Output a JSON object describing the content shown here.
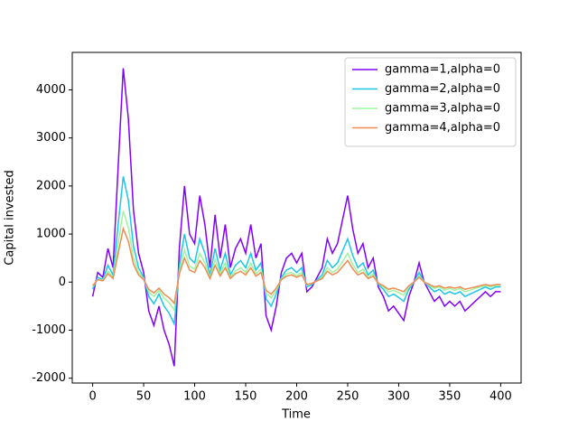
{
  "chart_data": {
    "type": "line",
    "xlabel": "Time",
    "ylabel": "Capital invested",
    "x": [
      0,
      5,
      10,
      15,
      20,
      25,
      30,
      35,
      40,
      45,
      50,
      55,
      60,
      65,
      70,
      75,
      80,
      85,
      90,
      95,
      100,
      105,
      110,
      115,
      120,
      125,
      130,
      135,
      140,
      145,
      150,
      155,
      160,
      165,
      170,
      175,
      180,
      185,
      190,
      195,
      200,
      205,
      210,
      215,
      220,
      225,
      230,
      235,
      240,
      245,
      250,
      255,
      260,
      265,
      270,
      275,
      280,
      285,
      290,
      295,
      300,
      305,
      310,
      315,
      320,
      325,
      330,
      335,
      340,
      345,
      350,
      355,
      360,
      365,
      370,
      375,
      380,
      385,
      390,
      395,
      400
    ],
    "series": [
      {
        "name": "gamma=1,alpha=0",
        "color": "#8000ff",
        "values": [
          -300,
          200,
          100,
          700,
          300,
          2400,
          4450,
          3400,
          1500,
          600,
          200,
          -600,
          -900,
          -500,
          -1000,
          -1300,
          -1750,
          700,
          2000,
          1000,
          800,
          1800,
          1200,
          300,
          1400,
          500,
          1200,
          300,
          700,
          900,
          600,
          1200,
          500,
          800,
          -700,
          -1000,
          -500,
          200,
          500,
          600,
          400,
          600,
          -200,
          -100,
          100,
          300,
          900,
          600,
          800,
          1300,
          1800,
          1100,
          600,
          800,
          300,
          500,
          -100,
          -300,
          -600,
          -500,
          -650,
          -800,
          -300,
          0,
          400,
          0,
          -200,
          -400,
          -300,
          -500,
          -400,
          -500,
          -400,
          -600,
          -500,
          -400,
          -300,
          -200,
          -300,
          -200,
          -200
        ]
      },
      {
        "name": "gamma=2,alpha=0",
        "color": "#1cc6e8",
        "values": [
          -150,
          100,
          50,
          350,
          150,
          1200,
          2200,
          1700,
          750,
          300,
          100,
          -300,
          -450,
          -250,
          -500,
          -650,
          -870,
          350,
          1000,
          500,
          400,
          900,
          600,
          150,
          700,
          250,
          600,
          150,
          350,
          450,
          300,
          600,
          250,
          400,
          -350,
          -500,
          -250,
          100,
          250,
          300,
          200,
          300,
          -100,
          -50,
          50,
          150,
          450,
          300,
          400,
          650,
          900,
          550,
          300,
          400,
          150,
          250,
          -50,
          -150,
          -300,
          -250,
          -320,
          -400,
          -150,
          0,
          200,
          0,
          -100,
          -200,
          -150,
          -250,
          -200,
          -250,
          -200,
          -300,
          -250,
          -200,
          -150,
          -100,
          -150,
          -100,
          -100
        ]
      },
      {
        "name": "gamma=3,alpha=0",
        "color": "#9ef59e",
        "values": [
          -100,
          70,
          30,
          230,
          100,
          800,
          1480,
          1130,
          500,
          200,
          70,
          -200,
          -300,
          -170,
          -330,
          -430,
          -580,
          230,
          670,
          330,
          270,
          600,
          400,
          100,
          470,
          170,
          400,
          100,
          230,
          300,
          200,
          400,
          170,
          270,
          -230,
          -330,
          -170,
          70,
          170,
          200,
          130,
          200,
          -70,
          -30,
          30,
          100,
          300,
          200,
          270,
          430,
          600,
          370,
          200,
          270,
          100,
          170,
          -30,
          -100,
          -200,
          -170,
          -220,
          -270,
          -100,
          0,
          130,
          0,
          -70,
          -130,
          -100,
          -170,
          -130,
          -170,
          -130,
          -200,
          -170,
          -130,
          -100,
          -70,
          -100,
          -70,
          -70
        ]
      },
      {
        "name": "gamma=4,alpha=0",
        "color": "#f08a50",
        "values": [
          -75,
          50,
          25,
          175,
          75,
          600,
          1110,
          850,
          375,
          150,
          50,
          -150,
          -225,
          -125,
          -250,
          -325,
          -440,
          175,
          500,
          250,
          200,
          450,
          300,
          75,
          350,
          125,
          300,
          75,
          175,
          225,
          150,
          300,
          125,
          200,
          -175,
          -250,
          -125,
          50,
          125,
          150,
          100,
          150,
          -50,
          -25,
          25,
          75,
          225,
          150,
          200,
          325,
          450,
          275,
          150,
          200,
          75,
          125,
          -25,
          -75,
          -150,
          -125,
          -160,
          -200,
          -75,
          0,
          100,
          0,
          -50,
          -100,
          -75,
          -125,
          -100,
          -125,
          -100,
          -150,
          -125,
          -100,
          -75,
          -50,
          -75,
          -50,
          -50
        ]
      }
    ],
    "xlim": [
      -20,
      420
    ],
    "xticks": [
      0,
      50,
      100,
      150,
      200,
      250,
      300,
      350,
      400
    ],
    "ylim": [
      -2100,
      4780
    ],
    "yticks": [
      -2000,
      -1000,
      0,
      1000,
      2000,
      3000,
      4000
    ],
    "grid": false,
    "legend": "upper right"
  }
}
